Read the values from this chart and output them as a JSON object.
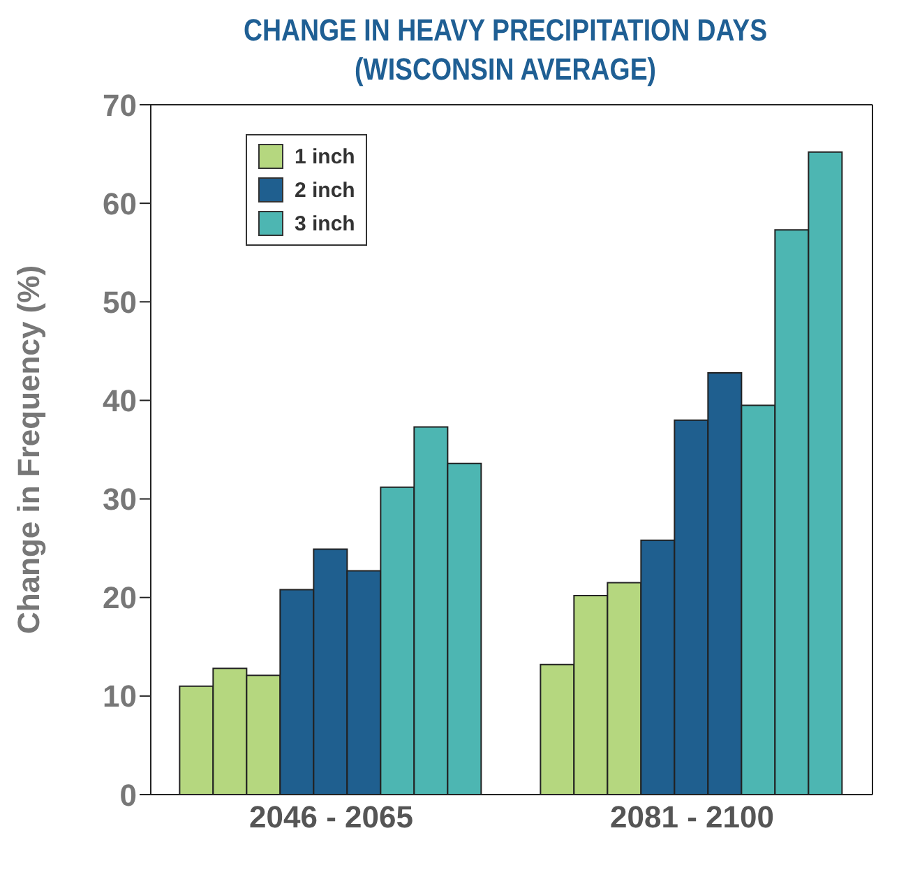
{
  "chart_data": {
    "type": "bar",
    "title": "CHANGE IN HEAVY PRECIPITATION DAYS\n(WISCONSIN AVERAGE)",
    "ylabel": "Change in Frequency (%)",
    "categories": [
      "2046 - 2065",
      "2081 - 2100"
    ],
    "series": [
      {
        "name": "1 inch",
        "color": "#b5d77f",
        "values": [
          11,
          13.2
        ]
      },
      {
        "color": "#b5d77f",
        "values": [
          12.8,
          20.2
        ]
      },
      {
        "color": "#b5d77f",
        "values": [
          12.1,
          21.5
        ]
      },
      {
        "name": "2 inch",
        "color": "#1f5f8f",
        "values": [
          20.8,
          25.8
        ]
      },
      {
        "color": "#1f5f8f",
        "values": [
          24.9,
          38
        ]
      },
      {
        "color": "#1f5f8f",
        "values": [
          22.7,
          42.8
        ]
      },
      {
        "name": "3 inch",
        "color": "#4db6b2",
        "values": [
          31.2,
          39.5
        ]
      },
      {
        "color": "#4db6b2",
        "values": [
          37.3,
          57.3
        ]
      },
      {
        "color": "#4db6b2",
        "values": [
          33.6,
          65.2
        ]
      }
    ],
    "ylim": [
      0,
      70
    ],
    "yticks": [
      0,
      10,
      20,
      30,
      40,
      50,
      60,
      70
    ],
    "grid": false,
    "legend": "top left"
  }
}
